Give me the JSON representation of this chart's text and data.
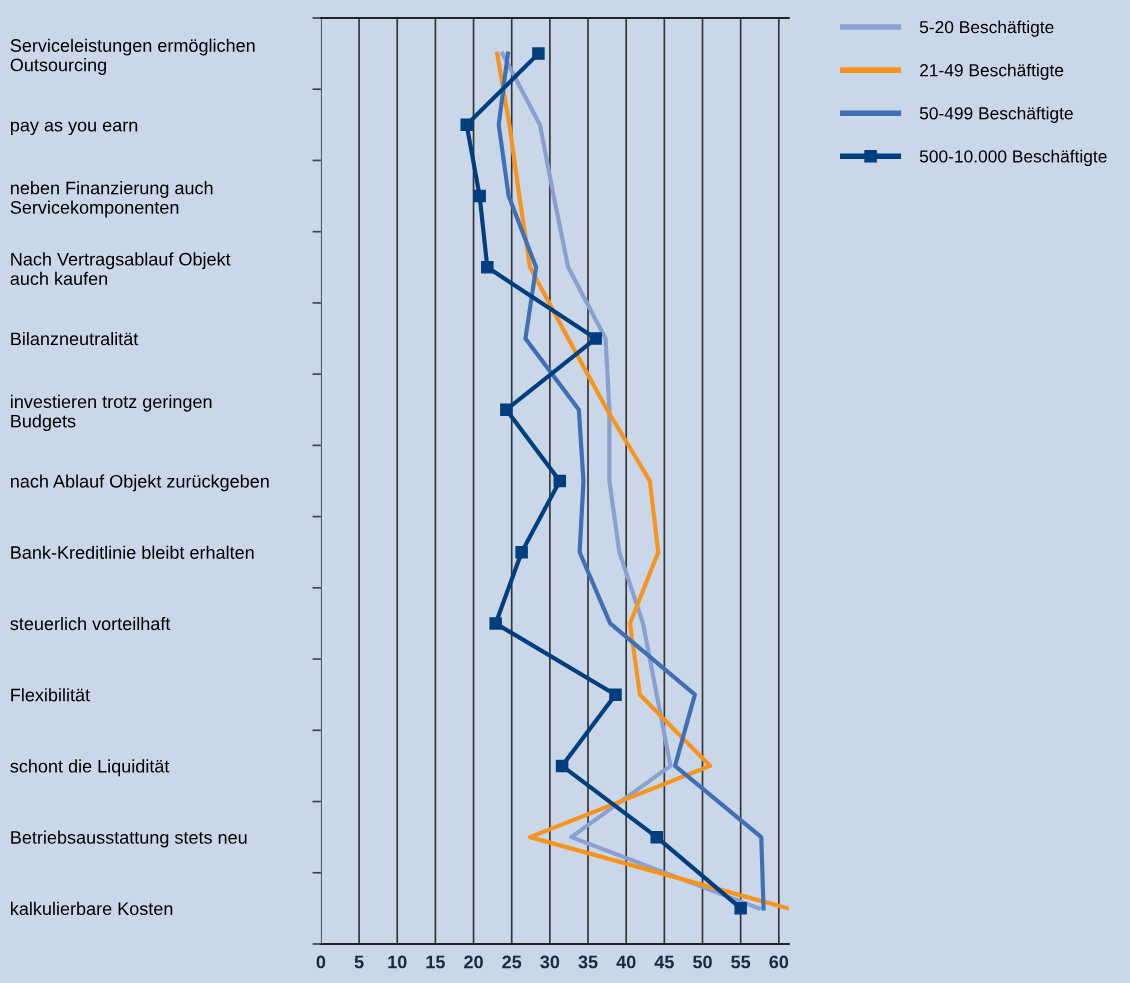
{
  "chart_data": {
    "type": "line",
    "orientation": "horizontal",
    "categories": [
      "Serviceleistungen ermöglichen\nOutsourcing",
      "pay as you earn",
      "neben Finanzierung auch\nServicekomponenten",
      "Nach Vertragsablauf Objekt\nauch kaufen",
      "Bilanzneutralität",
      "investieren trotz geringen\nBudgets",
      "nach Ablauf Objekt zurückgeben",
      "Bank-Kreditlinie bleibt erhalten",
      "steuerlich vorteilhaft",
      "Flexibilität",
      "schont die Liquidität",
      "Betriebsausstattung stets neu",
      "kalkulierbare Kosten"
    ],
    "series": [
      {
        "name": "5-20 Beschäftigte",
        "color": "#8aa0d0",
        "marker": "none",
        "values": [
          23.8,
          28.7,
          30.5,
          32.4,
          37.3,
          37.8,
          37.8,
          39.1,
          42.2,
          44.0,
          45.8,
          32.8,
          57.4
        ]
      },
      {
        "name": "21-49 Beschäftigte",
        "color": "#f7941d",
        "marker": "none",
        "values": [
          23.1,
          24.7,
          26.0,
          27.4,
          32.4,
          37.5,
          43.1,
          44.2,
          40.5,
          41.8,
          51.0,
          27.4,
          61.2
        ]
      },
      {
        "name": "50-499 Beschäftigte",
        "color": "#3f6fb5",
        "marker": "none",
        "values": [
          24.5,
          23.3,
          24.6,
          28.2,
          26.8,
          33.8,
          34.4,
          33.9,
          37.9,
          49.0,
          46.4,
          57.7,
          58.0
        ]
      },
      {
        "name": "500-10.000 Beschäftigte",
        "color": "#003f7f",
        "marker": "square",
        "values": [
          28.5,
          19.1,
          20.8,
          21.8,
          36.0,
          24.3,
          31.3,
          26.3,
          22.9,
          38.6,
          31.6,
          44.0,
          55.0
        ]
      }
    ],
    "xlim": [
      0,
      61.3
    ],
    "xticks": [
      0,
      5,
      10,
      15,
      20,
      25,
      30,
      35,
      40,
      45,
      50,
      55,
      60
    ],
    "grid": "x",
    "legend": "top right",
    "line_style": "solid"
  }
}
